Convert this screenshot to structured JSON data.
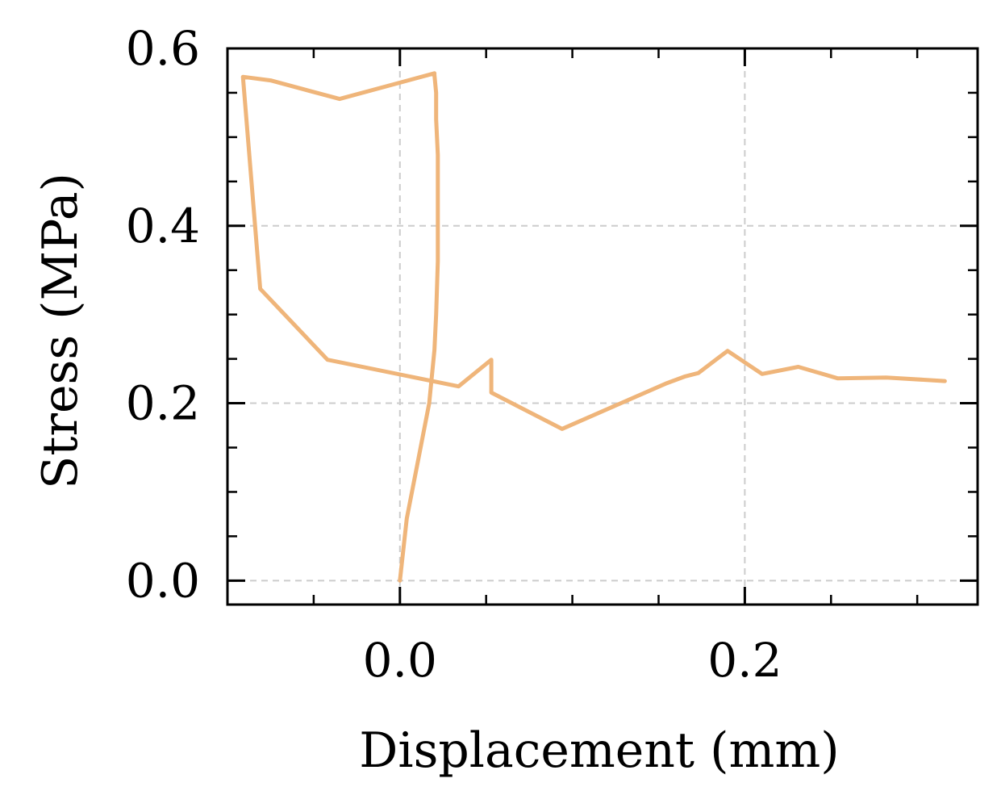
{
  "chart_data": {
    "type": "line",
    "title": "",
    "xlabel": "Displacement (mm)",
    "ylabel": "Stress (MPa)",
    "xlim": [
      -0.1,
      0.335
    ],
    "ylim": [
      -0.027,
      0.6
    ],
    "xticks": [
      0.0,
      0.2
    ],
    "xtick_labels": [
      "0.0",
      "0.2"
    ],
    "yticks": [
      0.0,
      0.2,
      0.4,
      0.6
    ],
    "ytick_labels": [
      "0.0",
      "0.2",
      "0.4",
      "0.6"
    ],
    "x_minor_step": 0.05,
    "y_minor_step": 0.05,
    "grid": true,
    "line_color": "#EFB57A",
    "grid_color": "#CCCCCC",
    "series": [
      {
        "x": [
          0.0,
          0.004,
          0.011,
          0.017,
          0.02,
          0.021,
          0.022,
          0.022,
          0.022,
          0.021,
          0.021,
          0.02,
          0.02,
          -0.035,
          -0.075,
          -0.091,
          -0.081,
          -0.042,
          0.034,
          0.053,
          0.053,
          0.094,
          0.154,
          0.165,
          0.173,
          0.19,
          0.21,
          0.231,
          0.254,
          0.282,
          0.316
        ],
        "y": [
          0.0,
          0.07,
          0.14,
          0.2,
          0.26,
          0.3,
          0.36,
          0.42,
          0.48,
          0.52,
          0.55,
          0.57,
          0.572,
          0.543,
          0.564,
          0.568,
          0.329,
          0.249,
          0.219,
          0.249,
          0.212,
          0.171,
          0.222,
          0.23,
          0.234,
          0.259,
          0.233,
          0.241,
          0.228,
          0.229,
          0.225
        ]
      }
    ]
  }
}
